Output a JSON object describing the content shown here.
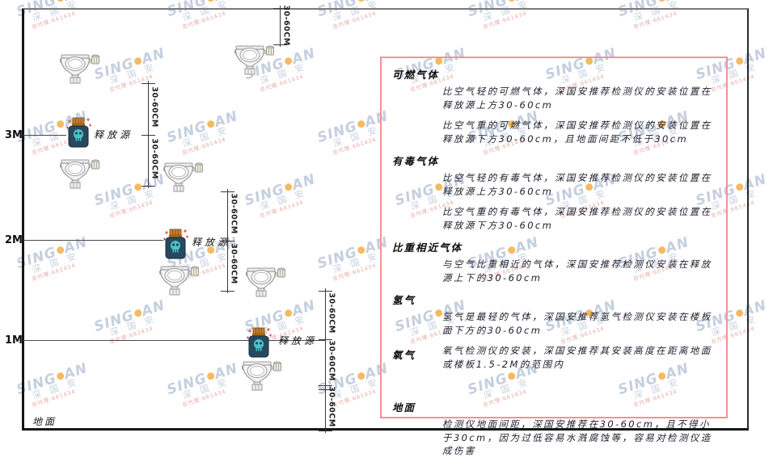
{
  "watermark": {
    "brand_first": "SING",
    "brand_last": "AN",
    "brand_cn": "深 国 安",
    "agent_line": "总代理:661434",
    "text_color": "#b7c4d7",
    "dot_color": "#f2a93b",
    "agent_color": "#e39090"
  },
  "diagram": {
    "height_markers": [
      {
        "label": "3M"
      },
      {
        "label": "2M"
      },
      {
        "label": "1M"
      }
    ],
    "ground_label": "地面",
    "release_source_label": "释放源",
    "dimension_label": "30-60CM",
    "detector_icon_count": 7,
    "release_source_count": 3
  },
  "panel": {
    "border_color": "#f19494",
    "sections": [
      {
        "heading": "可燃气体",
        "inline": false,
        "paragraphs": [
          "比空气轻的可燃气体，深国安推荐检测仪的安装位置在释放源上方30-60cm",
          "比空气重的可燃气体，深国安推荐检测仪的安装位置在释放源下方30-60cm，且地面间距不低于30cm"
        ]
      },
      {
        "heading": "有毒气体",
        "inline": false,
        "paragraphs": [
          "比空气轻的有毒气体，深国安推荐检测仪的安装位置在释放源上方30-60cm",
          "比空气重的有毒气体，深国安推荐检测仪的安装位置在释放源下方30-60cm"
        ]
      },
      {
        "heading": "比重相近气体",
        "inline": false,
        "paragraphs": [
          "与空气比重相近的气体，深国安推荐检测仪安装在释放源上下的30-60cm"
        ]
      },
      {
        "heading": "氢气",
        "inline": false,
        "paragraphs": [
          "氢气是最轻的气体，深国安推荐氢气检测仪安装在楼板面下方的30-60cm"
        ]
      },
      {
        "heading": "氧气",
        "inline": true,
        "paragraphs": [
          "氧气检测仪的安装，深国安推荐其安装高度在距离地面或楼板1.5-2M的范围内"
        ]
      },
      {
        "heading": "地面",
        "inline": false,
        "gap_before": true,
        "paragraphs": [
          "检测仪地面间距，深国安推荐在30-60cm，且不得小于30cm，因为过低容易水溅腐蚀等，容易对检测仪造成伤害"
        ]
      }
    ]
  },
  "colors": {
    "frame": "#161616",
    "dimension": "#3a3a3a",
    "source_body": "#27495f",
    "source_cap": "#c87f2e",
    "source_skull": "#49c3c8",
    "sparkle_red": "#d94040",
    "detector_gray": "#8e8e8e"
  }
}
